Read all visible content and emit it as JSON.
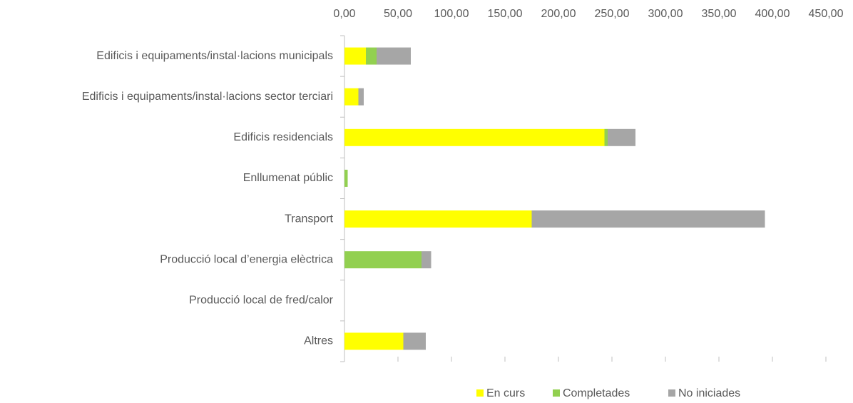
{
  "chart_data": {
    "type": "stacked-bar-horizontal",
    "categories": [
      "Edificis i equipaments/instal·lacions municipals",
      "Edificis i equipaments/instal·lacions sector terciari",
      "Edificis residencials",
      "Enllumenat públic",
      "Transport",
      "Producció local d’energia elèctrica",
      "Producció local de fred/calor",
      "Altres"
    ],
    "series": [
      {
        "name": "En curs",
        "color": "#ffff00",
        "values": [
          20,
          13,
          243,
          0,
          175,
          0,
          0,
          55
        ]
      },
      {
        "name": "Completades",
        "color": "#92d050",
        "values": [
          10,
          0,
          3,
          3,
          0,
          72,
          0,
          0
        ]
      },
      {
        "name": "No iniciades",
        "color": "#a6a6a6",
        "values": [
          32,
          5,
          26,
          0,
          218,
          9,
          0,
          21
        ]
      }
    ],
    "xlim": [
      0,
      450
    ],
    "xticks": [
      {
        "value": 0,
        "label": "0,00"
      },
      {
        "value": 50,
        "label": "50,00"
      },
      {
        "value": 100,
        "label": "100,00"
      },
      {
        "value": 150,
        "label": "150,00"
      },
      {
        "value": 200,
        "label": "200,00"
      },
      {
        "value": 250,
        "label": "250,00"
      },
      {
        "value": 300,
        "label": "300,00"
      },
      {
        "value": 350,
        "label": "350,00"
      },
      {
        "value": 400,
        "label": "400,00"
      },
      {
        "value": 450,
        "label": "450,00"
      }
    ],
    "legend": "bottom"
  }
}
